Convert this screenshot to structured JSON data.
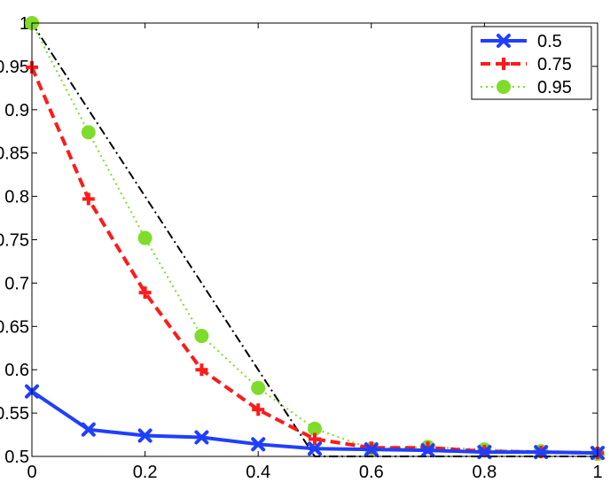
{
  "chart_data": {
    "type": "line",
    "title": "",
    "xlabel": "",
    "ylabel": "",
    "xlim": [
      0,
      1
    ],
    "ylim": [
      0.5,
      1
    ],
    "x_ticks": [
      0,
      0.2,
      0.4,
      0.6,
      0.8,
      1
    ],
    "x_tick_labels": [
      "0",
      "0.2",
      "0.4",
      "0.6",
      "0.8",
      "1"
    ],
    "y_ticks": [
      0.5,
      0.55,
      0.6,
      0.65,
      0.7,
      0.75,
      0.8,
      0.85,
      0.9,
      0.95,
      1
    ],
    "y_tick_labels": [
      "0.5",
      "0.55",
      "0.6",
      "0.65",
      "0.7",
      "0.75",
      "0.8",
      "0.85",
      "0.9",
      "0.95",
      "1"
    ],
    "grid": false,
    "legend_position": "top-right",
    "series": [
      {
        "name": "0.5",
        "color": "#1f3fff",
        "line_style": "solid",
        "marker": "x",
        "x": [
          0,
          0.1,
          0.2,
          0.3,
          0.4,
          0.5,
          0.6,
          0.7,
          0.8,
          0.9,
          1
        ],
        "y": [
          0.575,
          0.531,
          0.524,
          0.522,
          0.514,
          0.509,
          0.508,
          0.507,
          0.505,
          0.505,
          0.504
        ]
      },
      {
        "name": "0.75",
        "color": "#ff1a1a",
        "line_style": "dashed",
        "marker": "+",
        "x": [
          0,
          0.1,
          0.2,
          0.3,
          0.4,
          0.5,
          0.6,
          0.7,
          0.8,
          0.9,
          1
        ],
        "y": [
          0.949,
          0.797,
          0.689,
          0.6,
          0.554,
          0.52,
          0.51,
          0.51,
          0.506,
          0.505,
          0.504
        ]
      },
      {
        "name": "0.95",
        "color": "#7fdc2a",
        "line_style": "dotted",
        "marker": "o",
        "x": [
          0,
          0.1,
          0.2,
          0.3,
          0.4,
          0.5,
          0.6,
          0.7,
          0.8,
          0.9,
          1
        ],
        "y": [
          1.0,
          0.874,
          0.752,
          0.639,
          0.579,
          0.532,
          0.509,
          0.511,
          0.508,
          0.506,
          0.503
        ]
      },
      {
        "color": "#000000",
        "line_style": "dash-dot",
        "marker": "none",
        "x": [
          0,
          0.5,
          1
        ],
        "y": [
          1.0,
          0.5,
          0.5
        ]
      }
    ]
  }
}
